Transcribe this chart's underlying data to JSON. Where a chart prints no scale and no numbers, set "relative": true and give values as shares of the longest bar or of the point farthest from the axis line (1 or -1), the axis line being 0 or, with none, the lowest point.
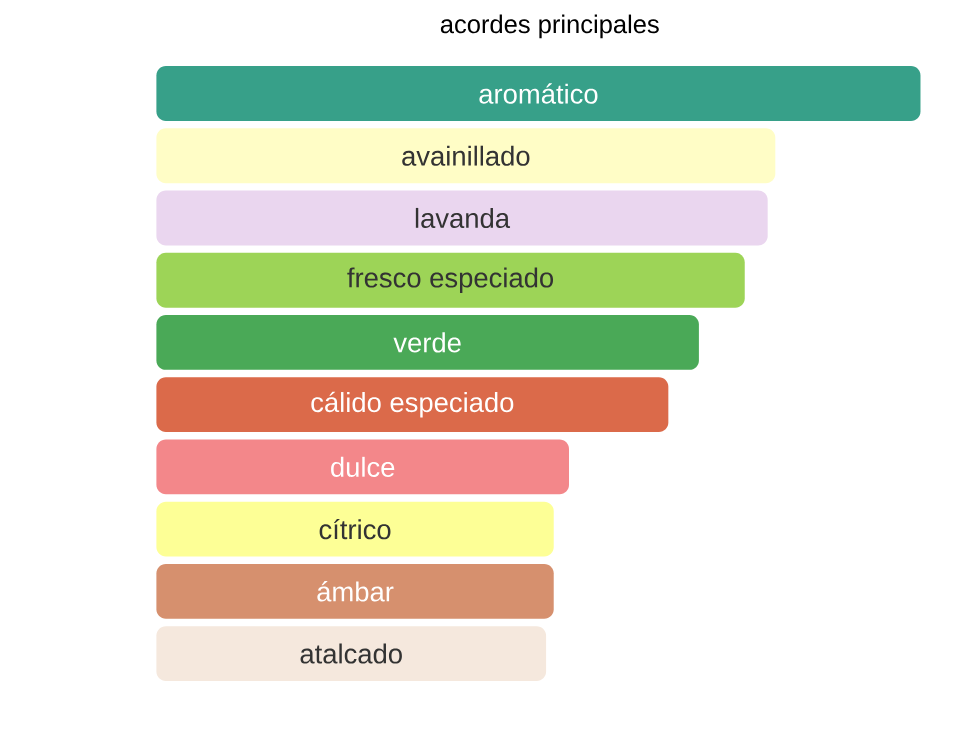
{
  "chart_data": {
    "type": "bar",
    "orientation": "horizontal",
    "relative": true,
    "title": "acordes principales",
    "categories": [
      "aromático",
      "avainillado",
      "lavanda",
      "fresco especiado",
      "verde",
      "cálido especiado",
      "dulce",
      "cítrico",
      "ámbar",
      "atalcado"
    ],
    "values": [
      1,
      0.81,
      0.8,
      0.77,
      0.71,
      0.67,
      0.54,
      0.52,
      0.52,
      0.51
    ],
    "colors": [
      "#37a089",
      "#fffdc6",
      "#ead6ef",
      "#9dd457",
      "#4aa957",
      "#db6a4a",
      "#f3878a",
      "#fdff96",
      "#d6906e",
      "#f5e8dd"
    ]
  }
}
